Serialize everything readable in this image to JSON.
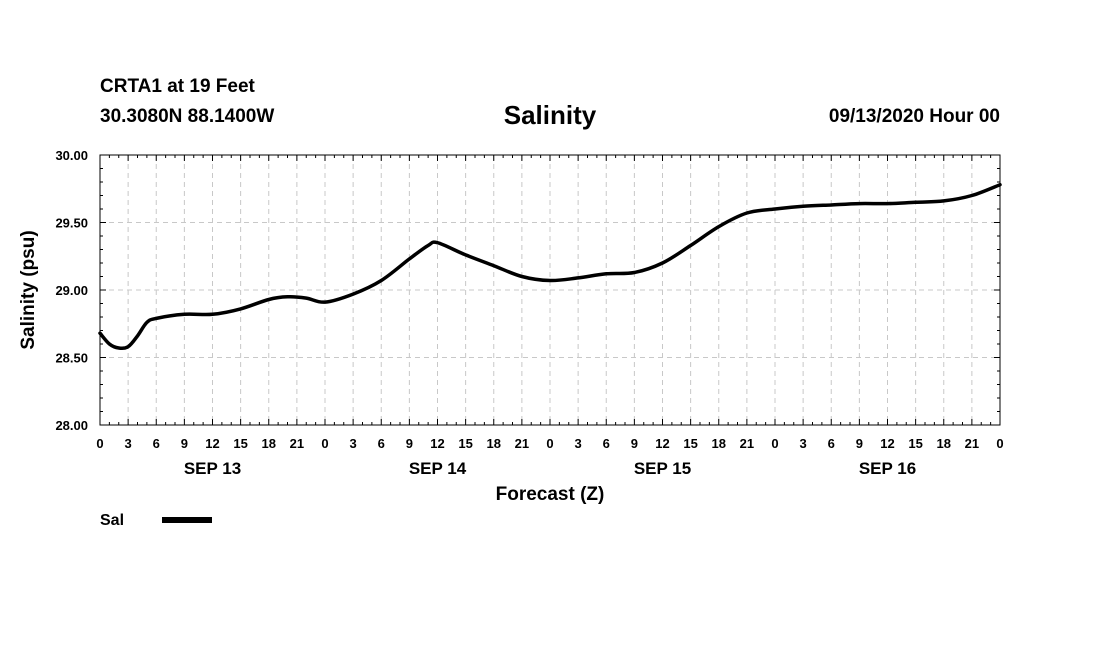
{
  "header": {
    "station": "CRTA1 at 19 Feet",
    "coords": "30.3080N 88.1400W",
    "stamp": "09/13/2020 Hour 00"
  },
  "chart_data": {
    "type": "line",
    "title": "Salinity",
    "xlabel": "Forecast (Z)",
    "ylabel": "Salinity (psu)",
    "xlim": [
      0,
      96
    ],
    "ylim": [
      28.0,
      30.0
    ],
    "yticks": [
      "28.00",
      "28.50",
      "29.00",
      "29.50",
      "30.00"
    ],
    "xtick_labels": [
      "0",
      "3",
      "6",
      "9",
      "12",
      "15",
      "18",
      "21",
      "0",
      "3",
      "6",
      "9",
      "12",
      "15",
      "18",
      "21",
      "0",
      "3",
      "6",
      "9",
      "12",
      "15",
      "18",
      "21",
      "0",
      "3",
      "6",
      "9",
      "12",
      "15",
      "18",
      "21",
      "0"
    ],
    "days": [
      {
        "label": "SEP 13",
        "hour": 12
      },
      {
        "label": "SEP 14",
        "hour": 36
      },
      {
        "label": "SEP 15",
        "hour": 60
      },
      {
        "label": "SEP 16",
        "hour": 84
      }
    ],
    "grid": true,
    "legend": "bottom-left",
    "series": [
      {
        "name": "Sal",
        "color": "#000000",
        "x": [
          0,
          1,
          2,
          3,
          4,
          5,
          6,
          9,
          12,
          15,
          18,
          20,
          22,
          24,
          27,
          30,
          33,
          35,
          36,
          39,
          42,
          45,
          48,
          51,
          54,
          57,
          60,
          63,
          66,
          69,
          72,
          75,
          78,
          81,
          84,
          87,
          90,
          93,
          96
        ],
        "y": [
          28.68,
          28.6,
          28.57,
          28.58,
          28.66,
          28.76,
          28.79,
          28.82,
          28.82,
          28.86,
          28.93,
          28.95,
          28.94,
          28.91,
          28.97,
          29.07,
          29.23,
          29.33,
          29.35,
          29.26,
          29.18,
          29.1,
          29.07,
          29.09,
          29.12,
          29.13,
          29.2,
          29.33,
          29.47,
          29.57,
          29.6,
          29.62,
          29.63,
          29.64,
          29.64,
          29.65,
          29.66,
          29.7,
          29.78
        ]
      }
    ]
  }
}
